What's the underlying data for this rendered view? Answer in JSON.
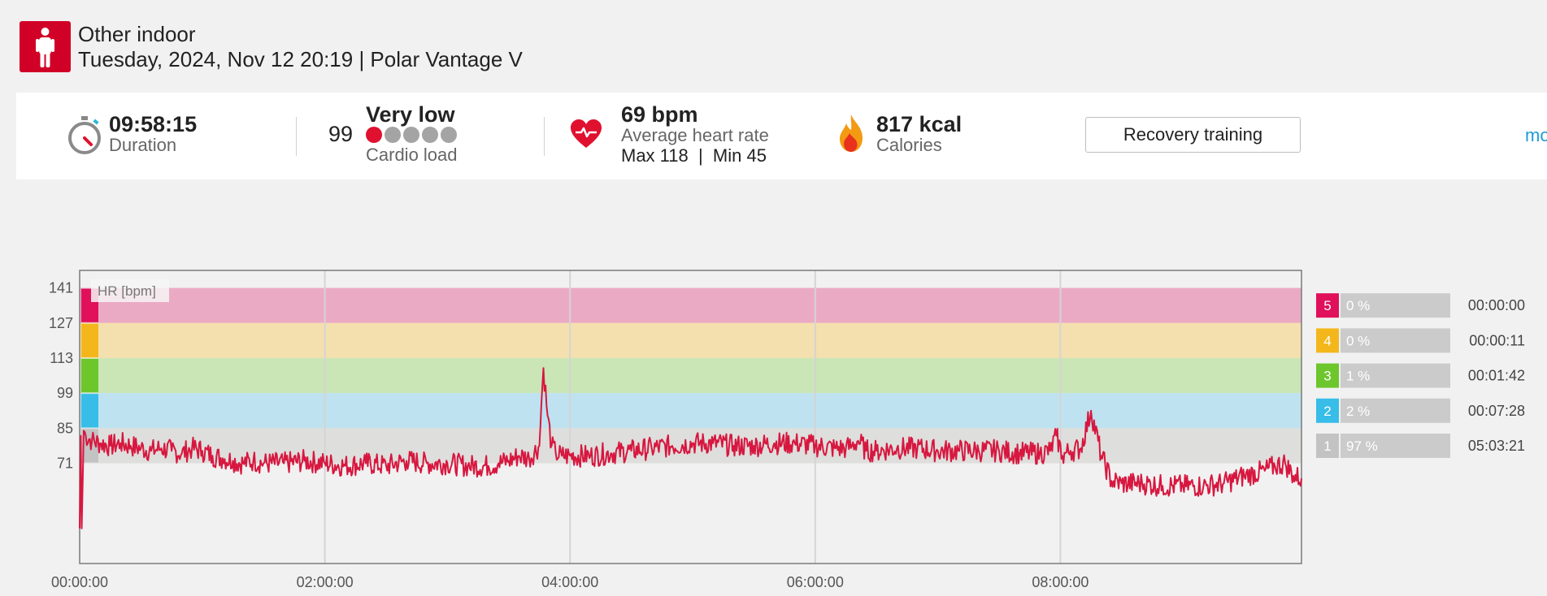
{
  "header": {
    "sport": "Other indoor",
    "session_info": "Tuesday, 2024, Nov 12 20:19 | Polar Vantage V"
  },
  "summary": {
    "duration": {
      "value": "09:58:15",
      "label": "Duration"
    },
    "cardio_load": {
      "value": "99",
      "status": "Very low",
      "label": "Cardio load",
      "filled_dots": 1,
      "total_dots": 5
    },
    "heart_rate": {
      "value": "69 bpm",
      "label": "Average heart rate",
      "max_min": "Max 118  |  Min 45"
    },
    "calories": {
      "value": "817 kcal",
      "label": "Calories"
    },
    "benefit_button": "Recovery training",
    "more_link": "mo"
  },
  "colors": {
    "brand_red": "#d10027",
    "hr_line": "#d7173f",
    "zone5": "#e0105a",
    "zone4": "#f4b71b",
    "zone3": "#6cc62c",
    "zone2": "#37bde8",
    "zone1": "#c3c3c3",
    "link": "#1e9bd7"
  },
  "chart_data": {
    "type": "line",
    "legend_label": "HR [bpm]",
    "y_ticks": [
      141,
      127,
      113,
      99,
      85,
      71
    ],
    "x_ticks": [
      "00:00:00",
      "02:00:00",
      "04:00:00",
      "06:00:00",
      "08:00:00"
    ],
    "x_range_minutes": [
      0,
      598
    ],
    "y_range": [
      31,
      148
    ],
    "zones": [
      {
        "zone": "5",
        "min": 127,
        "max": 141,
        "percent": "0 %",
        "time": "00:00:00"
      },
      {
        "zone": "4",
        "min": 113,
        "max": 127,
        "percent": "0 %",
        "time": "00:00:11"
      },
      {
        "zone": "3",
        "min": 99,
        "max": 113,
        "percent": "1 %",
        "time": "00:01:42"
      },
      {
        "zone": "2",
        "min": 85,
        "max": 99,
        "percent": "2 %",
        "time": "00:07:28"
      },
      {
        "zone": "1",
        "min": 71,
        "max": 85,
        "percent": "97 %",
        "time": "05:03:21"
      }
    ],
    "series": [
      {
        "x_minutes": [
          0,
          0.5,
          1,
          2,
          3,
          6,
          10,
          15,
          20,
          25,
          30,
          35,
          40,
          45,
          50,
          55,
          60,
          65,
          70,
          75,
          80,
          85,
          90,
          100,
          110,
          120,
          130,
          140,
          150,
          160,
          170,
          180,
          190,
          200,
          205,
          210,
          215,
          220,
          225,
          226,
          227,
          229,
          231,
          233,
          236,
          240,
          250,
          260,
          270,
          280,
          290,
          300,
          310,
          320,
          330,
          340,
          350,
          360,
          370,
          375,
          378,
          381,
          385,
          390,
          400,
          410,
          420,
          430,
          440,
          450,
          460,
          470,
          475,
          478,
          481,
          485,
          490,
          495,
          500,
          505,
          510,
          520,
          530,
          540,
          550,
          560,
          570,
          580,
          585,
          590,
          594,
          598
        ],
        "values": [
          45,
          82,
          45,
          84,
          82,
          80,
          79,
          78,
          79,
          78,
          77,
          76,
          77,
          76,
          75,
          77,
          76,
          74,
          73,
          72,
          71,
          72,
          71,
          71,
          72,
          71,
          70,
          71,
          70,
          72,
          71,
          71,
          70,
          70,
          71,
          72,
          74,
          73,
          78,
          95,
          109,
          90,
          78,
          75,
          74,
          74,
          74,
          75,
          76,
          77,
          78,
          79,
          79,
          78,
          78,
          79,
          79,
          78,
          77,
          77,
          78,
          80,
          76,
          76,
          77,
          77,
          76,
          76,
          76,
          76,
          75,
          75,
          76,
          82,
          74,
          76,
          77,
          92,
          74,
          64,
          63,
          63,
          62,
          62,
          62,
          63,
          66,
          68,
          70,
          71,
          66,
          65
        ]
      }
    ]
  }
}
